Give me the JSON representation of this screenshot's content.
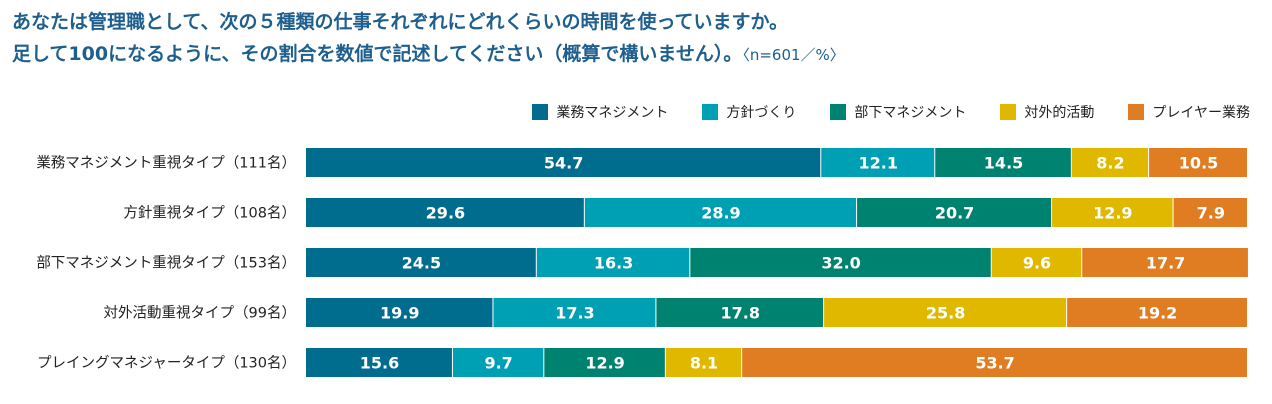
{
  "title_line1": "あなたは管理職として、次の５種類の仕事それぞれにどれくらいの時間を使っていますか。",
  "title_line2": "足して100になるように、その割合を数値で記述してください（概算で構いません）。",
  "title_note": "〈n=601／%〉",
  "chart_data": {
    "type": "bar",
    "orientation": "horizontal",
    "stacked": true,
    "xlim": [
      0,
      100
    ],
    "legend_position": "top-right",
    "categories": [
      "業務マネジメント重視タイプ（111名）",
      "方針重視タイプ（108名）",
      "部下マネジメント重視タイプ（153名）",
      "対外活動重視タイプ（99名）",
      "プレイングマネジャータイプ（130名）"
    ],
    "series": [
      {
        "name": "業務マネジメント",
        "color": "#006d8f",
        "values": [
          54.7,
          29.6,
          24.5,
          19.9,
          15.6
        ]
      },
      {
        "name": "方針づくり",
        "color": "#00a0b4",
        "values": [
          12.1,
          28.9,
          16.3,
          17.3,
          9.7
        ]
      },
      {
        "name": "部下マネジメント",
        "color": "#008270",
        "values": [
          14.5,
          20.7,
          32.0,
          17.8,
          12.9
        ]
      },
      {
        "name": "対外的活動",
        "color": "#e0b800",
        "values": [
          8.2,
          12.9,
          9.6,
          25.8,
          8.1
        ]
      },
      {
        "name": "プレイヤー業務",
        "color": "#e07d22",
        "values": [
          10.5,
          7.9,
          17.7,
          19.2,
          53.7
        ]
      }
    ]
  }
}
